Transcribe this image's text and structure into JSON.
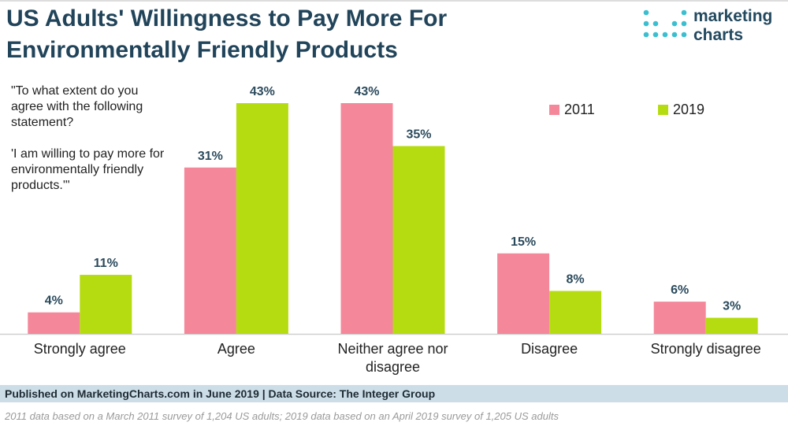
{
  "chart_data": {
    "type": "bar",
    "title": "US Adults' Willingness to Pay More For Environmentally Friendly Products",
    "question": "\"To what extent do you agree with the following statement?",
    "statement": "'I am willing to pay more for environmentally friendly products.'\"",
    "logo": [
      "marketing",
      "charts"
    ],
    "categories": [
      "Strongly agree",
      "Agree",
      "Neither agree nor disagree",
      "Disagree",
      "Strongly disagree"
    ],
    "series": [
      {
        "name": "2011",
        "color": "#f4879a",
        "values": [
          4,
          31,
          43,
          15,
          6
        ],
        "value_labels": [
          "4%",
          "31%",
          "43%",
          "15%",
          "6%"
        ]
      },
      {
        "name": "2019",
        "color": "#b5dc10",
        "values": [
          11,
          43,
          35,
          8,
          3
        ],
        "value_labels": [
          "11%",
          "43%",
          "35%",
          "8%",
          "3%"
        ]
      }
    ],
    "legend": "top-right",
    "source": "Published on MarketingCharts.com in June 2019 | Data Source: The Integer Group",
    "note": "2011 data based on a March 2011 survey of 1,204 US adults; 2019 data based on an April 2019 survey of 1,205 US adults"
  }
}
